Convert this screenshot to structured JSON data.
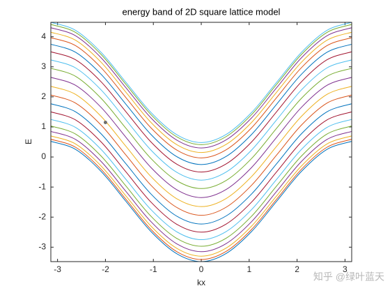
{
  "chart_data": {
    "type": "line",
    "title": "energy band of 2D square lattice model",
    "xlabel": "kx",
    "ylabel": "E",
    "x": [
      -3.14,
      -2.62,
      -2.09,
      -1.57,
      -1.05,
      -0.52,
      0,
      0.52,
      1.05,
      1.57,
      2.09,
      2.62,
      3.14
    ],
    "xlim": [
      -3.14,
      3.14
    ],
    "xticks": [
      -3,
      -2,
      -1,
      0,
      1,
      2,
      3
    ],
    "ylim": [
      -3.48,
      4.48
    ],
    "yticks": [
      -3,
      -2,
      -1,
      0,
      1,
      2,
      3,
      4
    ],
    "smooth": true,
    "point": {
      "x": -2,
      "y": 1.15,
      "color": "#6e6e6e"
    },
    "watermark": "知乎 @绿叶蓝天",
    "series": [
      {
        "color": "#0072BD",
        "values": [
          0.52,
          0.25,
          -0.48,
          -1.48,
          -2.48,
          -3.21,
          -3.48,
          -3.21,
          -2.48,
          -1.48,
          -0.48,
          0.25,
          0.52
        ]
      },
      {
        "color": "#D95319",
        "values": [
          0.59,
          0.32,
          -0.41,
          -1.41,
          -2.41,
          -3.14,
          -3.41,
          -3.14,
          -2.41,
          -1.41,
          -0.41,
          0.32,
          0.59
        ]
      },
      {
        "color": "#EDB120",
        "values": [
          0.7,
          0.43,
          -0.3,
          -1.3,
          -2.3,
          -3.03,
          -3.3,
          -3.03,
          -2.3,
          -1.3,
          -0.3,
          0.43,
          0.7
        ]
      },
      {
        "color": "#7E2F8E",
        "values": [
          0.85,
          0.58,
          -0.15,
          -1.15,
          -2.15,
          -2.88,
          -3.15,
          -2.88,
          -2.15,
          -1.15,
          -0.15,
          0.58,
          0.85
        ]
      },
      {
        "color": "#77AC30",
        "values": [
          1.03,
          0.76,
          0.03,
          -0.97,
          -1.97,
          -2.7,
          -2.97,
          -2.7,
          -1.97,
          -0.97,
          0.03,
          0.76,
          1.03
        ]
      },
      {
        "color": "#4DBEEE",
        "values": [
          1.25,
          0.98,
          0.25,
          -0.75,
          -1.75,
          -2.48,
          -2.75,
          -2.48,
          -1.75,
          -0.75,
          0.25,
          0.98,
          1.25
        ]
      },
      {
        "color": "#A2142F",
        "values": [
          1.5,
          1.23,
          0.5,
          -0.5,
          -1.5,
          -2.23,
          -2.5,
          -2.23,
          -1.5,
          -0.5,
          0.5,
          1.23,
          1.5
        ]
      },
      {
        "color": "#0072BD",
        "values": [
          1.77,
          1.5,
          0.77,
          -0.23,
          -1.23,
          -1.96,
          -2.23,
          -1.96,
          -1.23,
          -0.23,
          0.77,
          1.5,
          1.77
        ]
      },
      {
        "color": "#D95319",
        "values": [
          2.06,
          1.79,
          1.06,
          0.06,
          -0.94,
          -1.67,
          -1.94,
          -1.67,
          -0.94,
          0.06,
          1.06,
          1.79,
          2.06
        ]
      },
      {
        "color": "#EDB120",
        "values": [
          2.35,
          2.08,
          1.35,
          0.35,
          -0.65,
          -1.38,
          -1.65,
          -1.38,
          -0.65,
          0.35,
          1.35,
          2.08,
          2.35
        ]
      },
      {
        "color": "#7E2F8E",
        "values": [
          2.65,
          2.38,
          1.65,
          0.65,
          -0.35,
          -1.08,
          -1.35,
          -1.08,
          -0.35,
          0.65,
          1.65,
          2.38,
          2.65
        ]
      },
      {
        "color": "#77AC30",
        "values": [
          2.95,
          2.68,
          1.95,
          0.95,
          -0.05,
          -0.78,
          -1.05,
          -0.78,
          -0.05,
          0.95,
          1.95,
          2.68,
          2.95
        ]
      },
      {
        "color": "#4DBEEE",
        "values": [
          3.23,
          2.96,
          2.23,
          1.23,
          0.23,
          -0.5,
          -0.77,
          -0.5,
          0.23,
          1.23,
          2.23,
          2.96,
          3.23
        ]
      },
      {
        "color": "#A2142F",
        "values": [
          3.5,
          3.23,
          2.5,
          1.5,
          0.5,
          -0.23,
          -0.5,
          -0.23,
          0.5,
          1.5,
          2.5,
          3.23,
          3.5
        ]
      },
      {
        "color": "#0072BD",
        "values": [
          3.75,
          3.48,
          2.75,
          1.75,
          0.75,
          0.02,
          -0.25,
          0.02,
          0.75,
          1.75,
          2.75,
          3.48,
          3.75
        ]
      },
      {
        "color": "#D95319",
        "values": [
          3.97,
          3.7,
          2.97,
          1.97,
          0.97,
          0.24,
          -0.03,
          0.24,
          0.97,
          1.97,
          2.97,
          3.7,
          3.97
        ]
      },
      {
        "color": "#EDB120",
        "values": [
          4.15,
          3.88,
          3.15,
          2.15,
          1.15,
          0.42,
          0.15,
          0.42,
          1.15,
          2.15,
          3.15,
          3.88,
          4.15
        ]
      },
      {
        "color": "#7E2F8E",
        "values": [
          4.3,
          4.03,
          3.3,
          2.3,
          1.3,
          0.57,
          0.3,
          0.57,
          1.3,
          2.3,
          3.3,
          4.03,
          4.3
        ]
      },
      {
        "color": "#77AC30",
        "values": [
          4.41,
          4.14,
          3.41,
          2.41,
          1.41,
          0.68,
          0.41,
          0.68,
          1.41,
          2.41,
          3.41,
          4.14,
          4.41
        ]
      },
      {
        "color": "#4DBEEE",
        "values": [
          4.48,
          4.21,
          3.48,
          2.48,
          1.48,
          0.75,
          0.48,
          0.75,
          1.48,
          2.48,
          3.48,
          4.21,
          4.48
        ]
      }
    ]
  }
}
